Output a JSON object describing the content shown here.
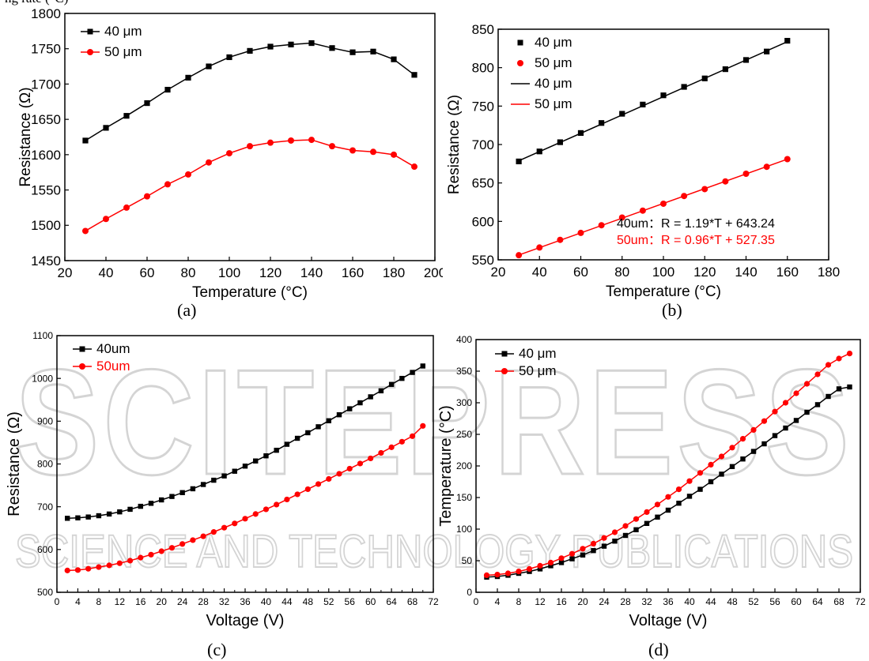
{
  "header_fragment": "ng rate (°C)",
  "captions": [
    "(a)",
    "(b)",
    "(c)",
    "(d)"
  ],
  "watermark": {
    "main": "SCITEPRESS",
    "sub": "SCIENCE AND TECHNOLOGY PUBLICATIONS"
  },
  "chart_data": [
    {
      "type": "line",
      "xlabel": "Temperature (°C)",
      "ylabel": "Resistance (Ω)",
      "xlim": [
        20,
        200
      ],
      "ylim": [
        1450,
        1800
      ],
      "xticks": [
        20,
        40,
        60,
        80,
        100,
        120,
        140,
        160,
        180,
        200
      ],
      "yticks": [
        1450,
        1500,
        1550,
        1600,
        1650,
        1700,
        1750,
        1800
      ],
      "legend": "top-left",
      "grid": false,
      "series": [
        {
          "name": "40 μm",
          "color": "#000000",
          "marker": "square",
          "line": true,
          "x": [
            30,
            40,
            50,
            60,
            70,
            80,
            90,
            100,
            110,
            120,
            130,
            140,
            150,
            160,
            170,
            180,
            190
          ],
          "y": [
            1620,
            1638,
            1655,
            1673,
            1692,
            1709,
            1725,
            1738,
            1747,
            1753,
            1756,
            1758,
            1751,
            1745,
            1746,
            1735,
            1713
          ]
        },
        {
          "name": "50 μm",
          "color": "#ff0000",
          "marker": "circle",
          "line": true,
          "x": [
            30,
            40,
            50,
            60,
            70,
            80,
            90,
            100,
            110,
            120,
            130,
            140,
            150,
            160,
            170,
            180,
            190
          ],
          "y": [
            1492,
            1509,
            1525,
            1541,
            1558,
            1572,
            1589,
            1602,
            1612,
            1617,
            1620,
            1621,
            1612,
            1606,
            1604,
            1600,
            1583
          ]
        }
      ]
    },
    {
      "type": "scatter",
      "xlabel": "Temperature (°C)",
      "ylabel": "Resistance (Ω)",
      "xlim": [
        20,
        180
      ],
      "ylim": [
        550,
        850
      ],
      "xticks": [
        20,
        40,
        60,
        80,
        100,
        120,
        140,
        160,
        180
      ],
      "yticks": [
        550,
        600,
        650,
        700,
        750,
        800,
        850
      ],
      "legend": "top-left",
      "grid": false,
      "series": [
        {
          "name": "40 μm",
          "color": "#000000",
          "marker": "square",
          "line": false,
          "x": [
            30,
            40,
            50,
            60,
            70,
            80,
            90,
            100,
            110,
            120,
            130,
            140,
            150,
            160
          ],
          "y": [
            678,
            691,
            703,
            715,
            728,
            740,
            752,
            764,
            775,
            786,
            798,
            810,
            821,
            835
          ]
        },
        {
          "name": "50 μm",
          "color": "#ff0000",
          "marker": "circle",
          "line": false,
          "x": [
            30,
            40,
            50,
            60,
            70,
            80,
            90,
            100,
            110,
            120,
            130,
            140,
            150,
            160
          ],
          "y": [
            556,
            566,
            576,
            585,
            595,
            605,
            614,
            623,
            633,
            642,
            652,
            662,
            671,
            681
          ]
        },
        {
          "name": "40 μm",
          "color": "#000000",
          "marker": "none",
          "line": true,
          "x": [
            30,
            160
          ],
          "y": [
            678.9,
            833.7
          ]
        },
        {
          "name": "50 μm",
          "color": "#ff0000",
          "marker": "none",
          "line": true,
          "x": [
            30,
            160
          ],
          "y": [
            556.2,
            680.95
          ]
        }
      ],
      "annotations": [
        {
          "text": "40um：R = 1.19*T + 643.24",
          "color": "#000000"
        },
        {
          "text": "50um：R = 0.96*T + 527.35",
          "color": "#ff0000"
        }
      ]
    },
    {
      "type": "line",
      "xlabel": "Voltage (V)",
      "ylabel": "Resistance (Ω)",
      "xlim": [
        0,
        72
      ],
      "ylim": [
        500,
        1100
      ],
      "xticks": [
        0,
        4,
        8,
        12,
        16,
        20,
        24,
        28,
        32,
        36,
        40,
        44,
        48,
        52,
        56,
        60,
        64,
        68,
        72
      ],
      "xticks_minor": [
        2,
        6,
        10,
        14,
        18,
        22,
        26,
        30,
        34,
        38,
        42,
        46,
        50,
        54,
        58,
        62,
        66,
        70
      ],
      "yticks": [
        500,
        600,
        700,
        800,
        900,
        1000,
        1100
      ],
      "legend": "top-left",
      "grid": false,
      "series": [
        {
          "name": "40um",
          "color": "#000000",
          "marker": "square",
          "line": true,
          "x": [
            2,
            4,
            6,
            8,
            10,
            12,
            14,
            16,
            18,
            20,
            22,
            24,
            26,
            28,
            30,
            32,
            34,
            36,
            38,
            40,
            42,
            44,
            46,
            48,
            50,
            52,
            54,
            56,
            58,
            60,
            62,
            64,
            66,
            68,
            70
          ],
          "y": [
            673,
            674,
            676,
            679,
            683,
            688,
            694,
            701,
            708,
            716,
            724,
            733,
            742,
            752,
            762,
            772,
            783,
            795,
            807,
            819,
            832,
            846,
            860,
            873,
            887,
            901,
            915,
            929,
            943,
            957,
            971,
            986,
            1000,
            1014,
            1029
          ]
        },
        {
          "name": "50um",
          "color": "#ff0000",
          "marker": "circle",
          "line": true,
          "x": [
            2,
            4,
            6,
            8,
            10,
            12,
            14,
            16,
            18,
            20,
            22,
            24,
            26,
            28,
            30,
            32,
            34,
            36,
            38,
            40,
            42,
            44,
            46,
            48,
            50,
            52,
            54,
            56,
            58,
            60,
            62,
            64,
            66,
            68,
            70
          ],
          "y": [
            551,
            552,
            555,
            559,
            563,
            568,
            574,
            581,
            588,
            596,
            604,
            613,
            622,
            631,
            641,
            651,
            661,
            672,
            683,
            694,
            705,
            717,
            729,
            741,
            753,
            765,
            777,
            789,
            801,
            813,
            826,
            839,
            852,
            865,
            889
          ]
        }
      ]
    },
    {
      "type": "line",
      "xlabel": "Voltage (V)",
      "ylabel": "Temperature (°C)",
      "xlim": [
        0,
        72
      ],
      "ylim": [
        0,
        400
      ],
      "xticks": [
        0,
        4,
        8,
        12,
        16,
        20,
        24,
        28,
        32,
        36,
        40,
        44,
        48,
        52,
        56,
        60,
        64,
        68,
        72
      ],
      "yticks": [
        0,
        50,
        100,
        150,
        200,
        250,
        300,
        350,
        400
      ],
      "legend": "top-left",
      "grid": false,
      "series": [
        {
          "name": "40 μm",
          "color": "#000000",
          "marker": "square",
          "line": true,
          "x": [
            2,
            4,
            6,
            8,
            10,
            12,
            14,
            16,
            18,
            20,
            22,
            24,
            26,
            28,
            30,
            32,
            34,
            36,
            38,
            40,
            42,
            44,
            46,
            48,
            50,
            52,
            54,
            56,
            58,
            60,
            62,
            64,
            66,
            68,
            70
          ],
          "y": [
            24,
            25,
            27,
            30,
            33,
            37,
            42,
            47,
            53,
            59,
            66,
            73,
            81,
            90,
            99,
            109,
            119,
            130,
            141,
            152,
            163,
            175,
            187,
            199,
            211,
            223,
            235,
            248,
            260,
            272,
            285,
            297,
            310,
            322,
            325
          ]
        },
        {
          "name": "50 μm",
          "color": "#ff0000",
          "marker": "circle",
          "line": true,
          "x": [
            2,
            4,
            6,
            8,
            10,
            12,
            14,
            16,
            18,
            20,
            22,
            24,
            26,
            28,
            30,
            32,
            34,
            36,
            38,
            40,
            42,
            44,
            46,
            48,
            50,
            52,
            54,
            56,
            58,
            60,
            62,
            64,
            66,
            68,
            70
          ],
          "y": [
            27,
            28,
            30,
            33,
            37,
            42,
            47,
            54,
            61,
            69,
            77,
            86,
            95,
            105,
            116,
            127,
            139,
            151,
            163,
            176,
            189,
            202,
            215,
            229,
            243,
            257,
            271,
            286,
            300,
            315,
            330,
            345,
            360,
            370,
            378
          ]
        }
      ]
    }
  ]
}
